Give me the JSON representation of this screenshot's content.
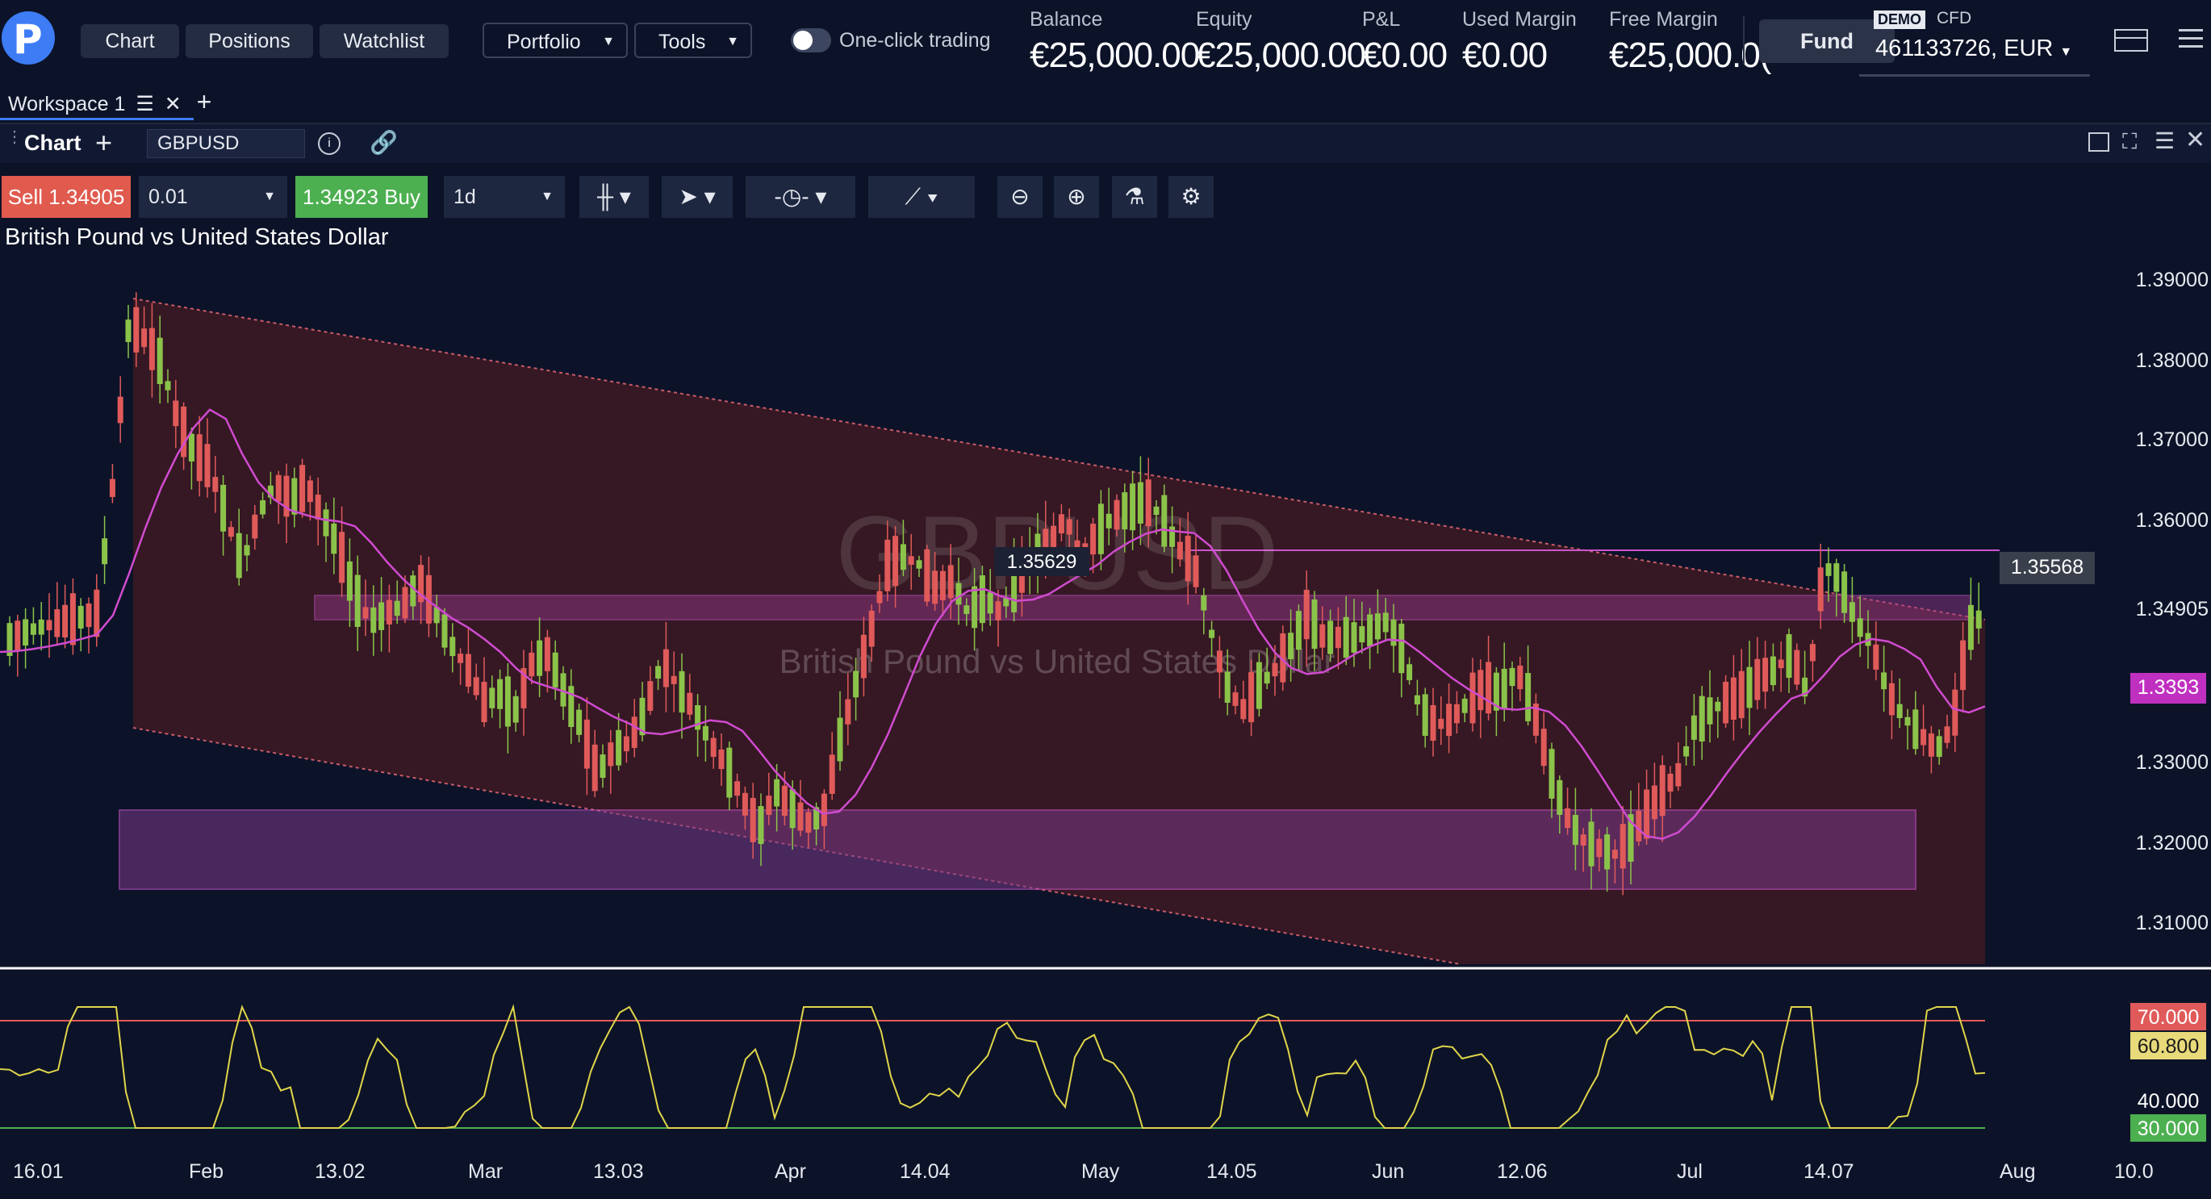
{
  "nav": {
    "chart": "Chart",
    "positions": "Positions",
    "watchlist": "Watchlist",
    "portfolio": "Portfolio",
    "tools": "Tools",
    "one_click": "One-click trading"
  },
  "account": {
    "balance_label": "Balance",
    "balance": "€25,000.00",
    "equity_label": "Equity",
    "equity": "€25,000.00",
    "pl_label": "P&L",
    "pl": "€0.00",
    "used_margin_label": "Used Margin",
    "used_margin": "€0.00",
    "free_margin_label": "Free Margin",
    "free_margin": "€25,000.0(",
    "fund": "Fund",
    "mode": "DEMO",
    "type": "CFD",
    "account_no": "461133726, EUR"
  },
  "workspace": {
    "label": "Workspace 1"
  },
  "chart_header": {
    "label": "Chart",
    "symbol": "GBPUSD"
  },
  "toolbar": {
    "sell": "Sell 1.34905",
    "quantity": "0.01",
    "buy": "1.34923 Buy",
    "timeframe": "1d"
  },
  "chart": {
    "title": "British Pound vs United States Dollar",
    "watermark_symbol": "GBPUSD",
    "watermark_name": "British Pound vs United States Dollar",
    "marker_label": "1.35629",
    "line_label": "1.35568",
    "current_price": "1.34905",
    "ma_value": "1.3393",
    "price_ticks": [
      "1.39000",
      "1.38000",
      "1.37000",
      "1.36000",
      "1.34905",
      "1.33000",
      "1.32000",
      "1.31000"
    ],
    "rsi_ticks": [
      "70.000",
      "60.800",
      "40.000",
      "30.000"
    ],
    "x_labels": [
      "16.01",
      "Feb",
      "13.02",
      "Mar",
      "13.03",
      "Apr",
      "14.04",
      "May",
      "14.05",
      "Jun",
      "12.06",
      "Jul",
      "14.07",
      "Aug",
      "10.0"
    ]
  },
  "colors": {
    "bg": "#0c1328",
    "up": "#8bc34a",
    "down": "#e05a5a",
    "ma": "#d04bd0",
    "rsi": "#e0d54a",
    "sell": "#e05a4e",
    "buy": "#4caf50"
  }
}
